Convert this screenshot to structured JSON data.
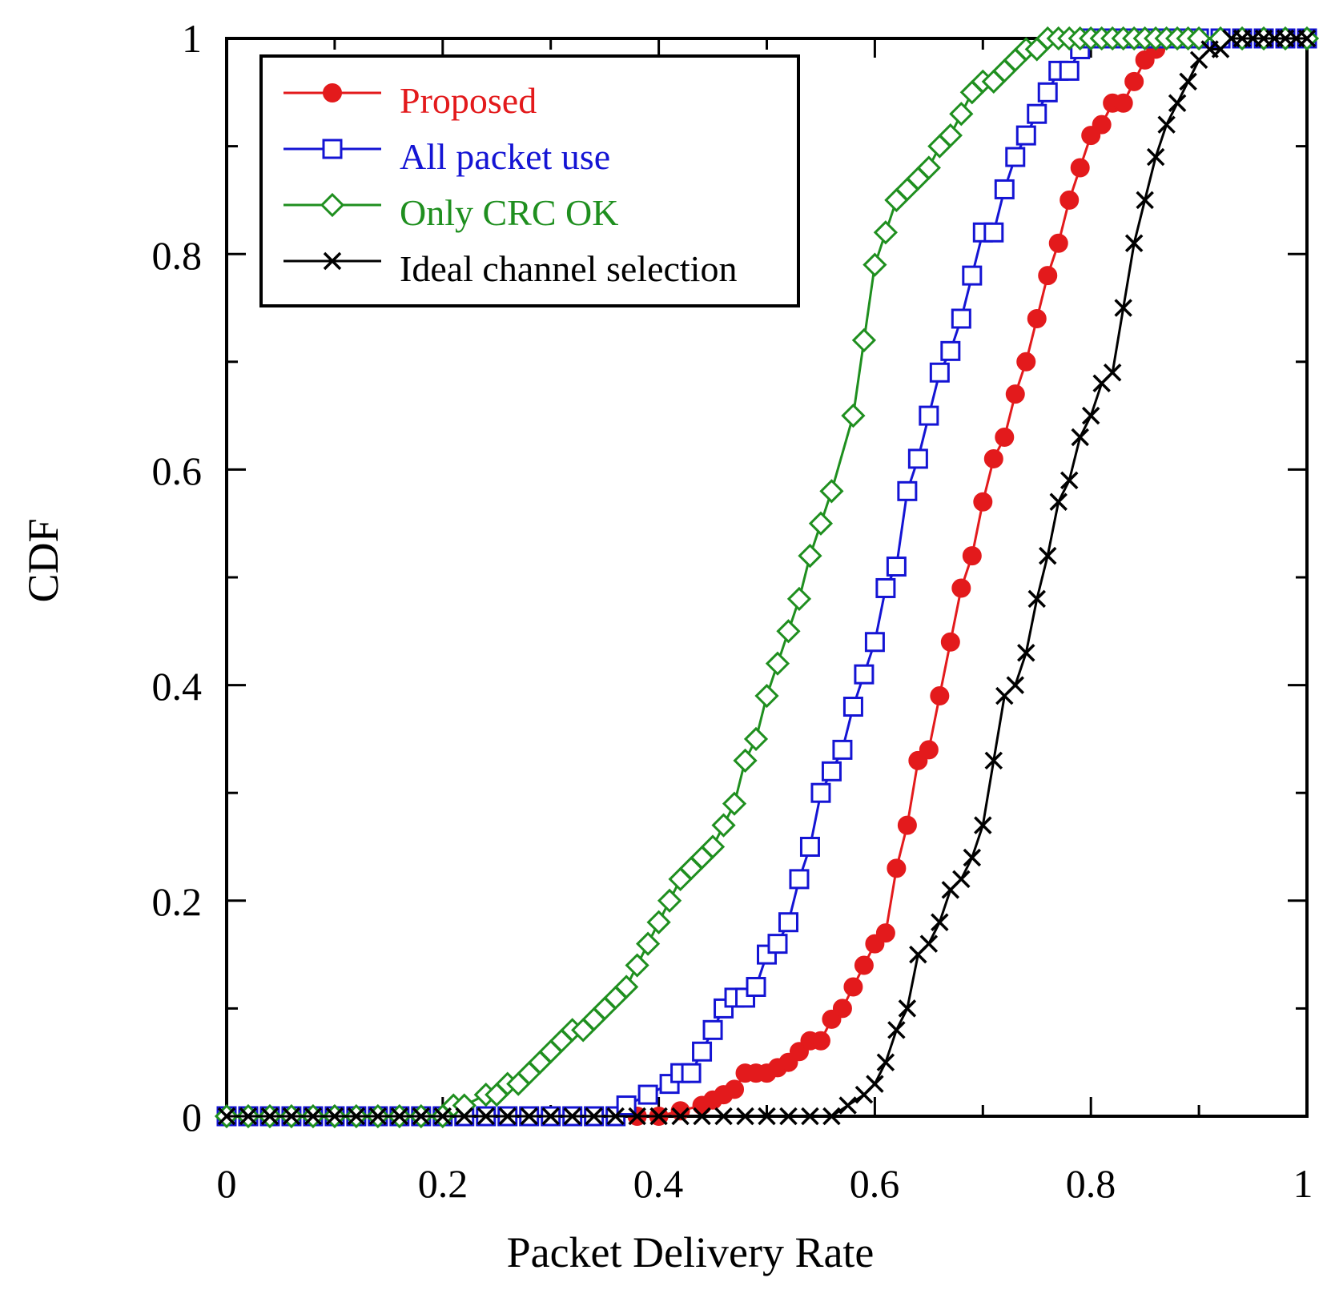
{
  "chart_data": {
    "type": "line",
    "title": "",
    "xlabel": "Packet Delivery Rate",
    "ylabel": "CDF",
    "xlim": [
      0,
      1
    ],
    "ylim": [
      0,
      1
    ],
    "xticks": [
      "0",
      "0.2",
      "0.4",
      "0.6",
      "0.8",
      "1"
    ],
    "yticks": [
      "0",
      "0.2",
      "0.4",
      "0.6",
      "0.8",
      "1"
    ],
    "grid": false,
    "legend_position": "top-left",
    "series": [
      {
        "name": "Proposed",
        "color": "#e31a1c",
        "marker": "filled-circle",
        "x": [
          0,
          0.02,
          0.04,
          0.06,
          0.08,
          0.1,
          0.12,
          0.14,
          0.16,
          0.18,
          0.2,
          0.22,
          0.24,
          0.26,
          0.28,
          0.3,
          0.32,
          0.34,
          0.36,
          0.38,
          0.4,
          0.42,
          0.44,
          0.45,
          0.46,
          0.47,
          0.48,
          0.49,
          0.5,
          0.51,
          0.52,
          0.53,
          0.54,
          0.55,
          0.56,
          0.57,
          0.58,
          0.59,
          0.6,
          0.61,
          0.62,
          0.63,
          0.64,
          0.65,
          0.66,
          0.67,
          0.68,
          0.69,
          0.7,
          0.71,
          0.72,
          0.73,
          0.74,
          0.75,
          0.76,
          0.77,
          0.78,
          0.79,
          0.8,
          0.81,
          0.82,
          0.83,
          0.84,
          0.85,
          0.86,
          0.87,
          0.88,
          0.9,
          0.92,
          0.94,
          0.96,
          0.98,
          1.0
        ],
        "y": [
          0,
          0,
          0,
          0,
          0,
          0,
          0,
          0,
          0,
          0,
          0,
          0,
          0,
          0,
          0,
          0,
          0,
          0,
          0,
          0,
          0,
          0.005,
          0.01,
          0.015,
          0.02,
          0.025,
          0.04,
          0.04,
          0.04,
          0.045,
          0.05,
          0.06,
          0.07,
          0.07,
          0.09,
          0.1,
          0.12,
          0.14,
          0.16,
          0.17,
          0.23,
          0.27,
          0.33,
          0.34,
          0.39,
          0.44,
          0.49,
          0.52,
          0.57,
          0.61,
          0.63,
          0.67,
          0.7,
          0.74,
          0.78,
          0.81,
          0.85,
          0.88,
          0.91,
          0.92,
          0.94,
          0.94,
          0.96,
          0.98,
          0.99,
          1,
          1,
          1,
          1,
          1,
          1,
          1,
          1
        ]
      },
      {
        "name": "All packet use",
        "color": "#1414d4",
        "marker": "open-square",
        "x": [
          0,
          0.02,
          0.04,
          0.06,
          0.08,
          0.1,
          0.12,
          0.14,
          0.16,
          0.18,
          0.2,
          0.22,
          0.24,
          0.26,
          0.28,
          0.3,
          0.32,
          0.34,
          0.36,
          0.37,
          0.39,
          0.41,
          0.42,
          0.43,
          0.44,
          0.45,
          0.46,
          0.47,
          0.48,
          0.49,
          0.5,
          0.51,
          0.52,
          0.53,
          0.54,
          0.55,
          0.56,
          0.57,
          0.58,
          0.59,
          0.6,
          0.61,
          0.62,
          0.63,
          0.64,
          0.65,
          0.66,
          0.67,
          0.68,
          0.69,
          0.7,
          0.71,
          0.72,
          0.73,
          0.74,
          0.75,
          0.76,
          0.77,
          0.78,
          0.79,
          0.8,
          0.82,
          0.84,
          0.86,
          0.88,
          0.9,
          0.92,
          0.94,
          0.96,
          0.98,
          1.0
        ],
        "y": [
          0,
          0,
          0,
          0,
          0,
          0,
          0,
          0,
          0,
          0,
          0,
          0,
          0,
          0,
          0,
          0,
          0,
          0,
          0,
          0.01,
          0.02,
          0.03,
          0.04,
          0.04,
          0.06,
          0.08,
          0.1,
          0.11,
          0.11,
          0.12,
          0.15,
          0.16,
          0.18,
          0.22,
          0.25,
          0.3,
          0.32,
          0.34,
          0.38,
          0.41,
          0.44,
          0.49,
          0.51,
          0.58,
          0.61,
          0.65,
          0.69,
          0.71,
          0.74,
          0.78,
          0.82,
          0.82,
          0.86,
          0.89,
          0.91,
          0.93,
          0.95,
          0.97,
          0.97,
          0.99,
          1,
          1,
          1,
          1,
          1,
          1,
          1,
          1,
          1,
          1,
          1
        ]
      },
      {
        "name": "Only CRC OK",
        "color": "#1f8f1f",
        "marker": "open-diamond",
        "x": [
          0,
          0.02,
          0.04,
          0.06,
          0.08,
          0.1,
          0.12,
          0.14,
          0.16,
          0.18,
          0.2,
          0.21,
          0.22,
          0.24,
          0.25,
          0.26,
          0.27,
          0.28,
          0.29,
          0.3,
          0.31,
          0.32,
          0.33,
          0.34,
          0.35,
          0.36,
          0.37,
          0.38,
          0.39,
          0.4,
          0.41,
          0.42,
          0.43,
          0.44,
          0.45,
          0.46,
          0.47,
          0.48,
          0.49,
          0.5,
          0.51,
          0.52,
          0.53,
          0.54,
          0.55,
          0.56,
          0.58,
          0.59,
          0.6,
          0.61,
          0.62,
          0.63,
          0.64,
          0.65,
          0.66,
          0.67,
          0.68,
          0.69,
          0.7,
          0.71,
          0.72,
          0.73,
          0.74,
          0.75,
          0.76,
          0.77,
          0.78,
          0.79,
          0.8,
          0.81,
          0.82,
          0.83,
          0.84,
          0.85,
          0.86,
          0.87,
          0.88,
          0.89,
          0.9,
          0.92,
          0.94,
          0.96,
          0.98,
          1.0
        ],
        "y": [
          0,
          0,
          0,
          0,
          0,
          0,
          0,
          0,
          0,
          0,
          0,
          0.01,
          0.01,
          0.02,
          0.02,
          0.03,
          0.03,
          0.04,
          0.05,
          0.06,
          0.07,
          0.08,
          0.08,
          0.09,
          0.1,
          0.11,
          0.12,
          0.14,
          0.16,
          0.18,
          0.2,
          0.22,
          0.23,
          0.24,
          0.25,
          0.27,
          0.29,
          0.33,
          0.35,
          0.39,
          0.42,
          0.45,
          0.48,
          0.52,
          0.55,
          0.58,
          0.65,
          0.72,
          0.79,
          0.82,
          0.85,
          0.86,
          0.87,
          0.88,
          0.9,
          0.91,
          0.93,
          0.95,
          0.96,
          0.96,
          0.97,
          0.98,
          0.99,
          0.99,
          1,
          1,
          1,
          1,
          1,
          1,
          1,
          1,
          1,
          1,
          1,
          1,
          1,
          1,
          1,
          1,
          1,
          1,
          1,
          1
        ]
      },
      {
        "name": "Ideal channel selection",
        "color": "#000000",
        "marker": "cross",
        "x": [
          0,
          0.02,
          0.04,
          0.06,
          0.08,
          0.1,
          0.12,
          0.14,
          0.16,
          0.18,
          0.2,
          0.22,
          0.24,
          0.26,
          0.28,
          0.3,
          0.32,
          0.34,
          0.36,
          0.38,
          0.4,
          0.42,
          0.44,
          0.46,
          0.48,
          0.5,
          0.52,
          0.54,
          0.56,
          0.575,
          0.59,
          0.6,
          0.61,
          0.62,
          0.63,
          0.64,
          0.65,
          0.66,
          0.67,
          0.68,
          0.69,
          0.7,
          0.71,
          0.72,
          0.73,
          0.74,
          0.75,
          0.76,
          0.77,
          0.78,
          0.79,
          0.8,
          0.81,
          0.82,
          0.83,
          0.84,
          0.85,
          0.86,
          0.87,
          0.88,
          0.89,
          0.9,
          0.91,
          0.92,
          0.93,
          0.94,
          0.95,
          0.96,
          0.97,
          0.98,
          0.99,
          1.0
        ],
        "y": [
          0,
          0,
          0,
          0,
          0,
          0,
          0,
          0,
          0,
          0,
          0,
          0,
          0,
          0,
          0,
          0,
          0,
          0,
          0,
          0,
          0,
          0,
          0,
          0,
          0,
          0,
          0,
          0,
          0,
          0.01,
          0.02,
          0.03,
          0.05,
          0.08,
          0.1,
          0.15,
          0.16,
          0.18,
          0.21,
          0.22,
          0.24,
          0.27,
          0.33,
          0.39,
          0.4,
          0.43,
          0.48,
          0.52,
          0.57,
          0.59,
          0.63,
          0.65,
          0.68,
          0.69,
          0.75,
          0.81,
          0.85,
          0.89,
          0.92,
          0.94,
          0.96,
          0.98,
          0.99,
          0.99,
          1,
          1,
          1,
          1,
          1,
          1,
          1,
          1
        ]
      }
    ]
  }
}
